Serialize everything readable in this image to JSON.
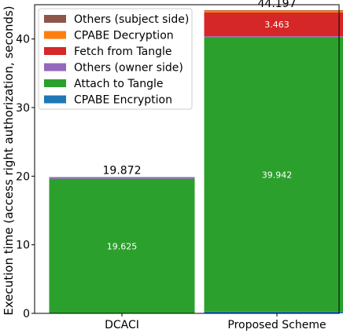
{
  "chart_data": {
    "type": "bar",
    "stacked": true,
    "categories": [
      "DCACI",
      "Proposed Scheme"
    ],
    "ylabel": "Execution time (access right authorization, seconds)",
    "xlabel": "",
    "ylim": [
      0,
      45
    ],
    "yticks": [
      0,
      10,
      20,
      30,
      40
    ],
    "legend_position": "top-left",
    "series": [
      {
        "name": "CPABE Encryption",
        "color": "#1f77b4",
        "values": [
          0.0,
          0.25
        ]
      },
      {
        "name": "Attach to Tangle",
        "color": "#2ca02c",
        "values": [
          19.625,
          39.942
        ]
      },
      {
        "name": "Others (owner side)",
        "color": "#9467bd",
        "values": [
          0.247,
          0.2
        ]
      },
      {
        "name": "Fetch from Tangle",
        "color": "#d62728",
        "values": [
          0.0,
          3.463
        ]
      },
      {
        "name": "CPABE Decryption",
        "color": "#ff7f0e",
        "values": [
          0.0,
          0.3
        ]
      },
      {
        "name": "Others (subject side)",
        "color": "#8c564b",
        "values": [
          0.0,
          0.042
        ]
      }
    ],
    "segment_labels": [
      {
        "series": "Attach to Tangle",
        "category": "DCACI",
        "text": "19.625"
      },
      {
        "series": "Attach to Tangle",
        "category": "Proposed Scheme",
        "text": "39.942"
      },
      {
        "series": "Fetch from Tangle",
        "category": "Proposed Scheme",
        "text": "3.463"
      }
    ],
    "totals": [
      "19.872",
      "44.197"
    ]
  }
}
